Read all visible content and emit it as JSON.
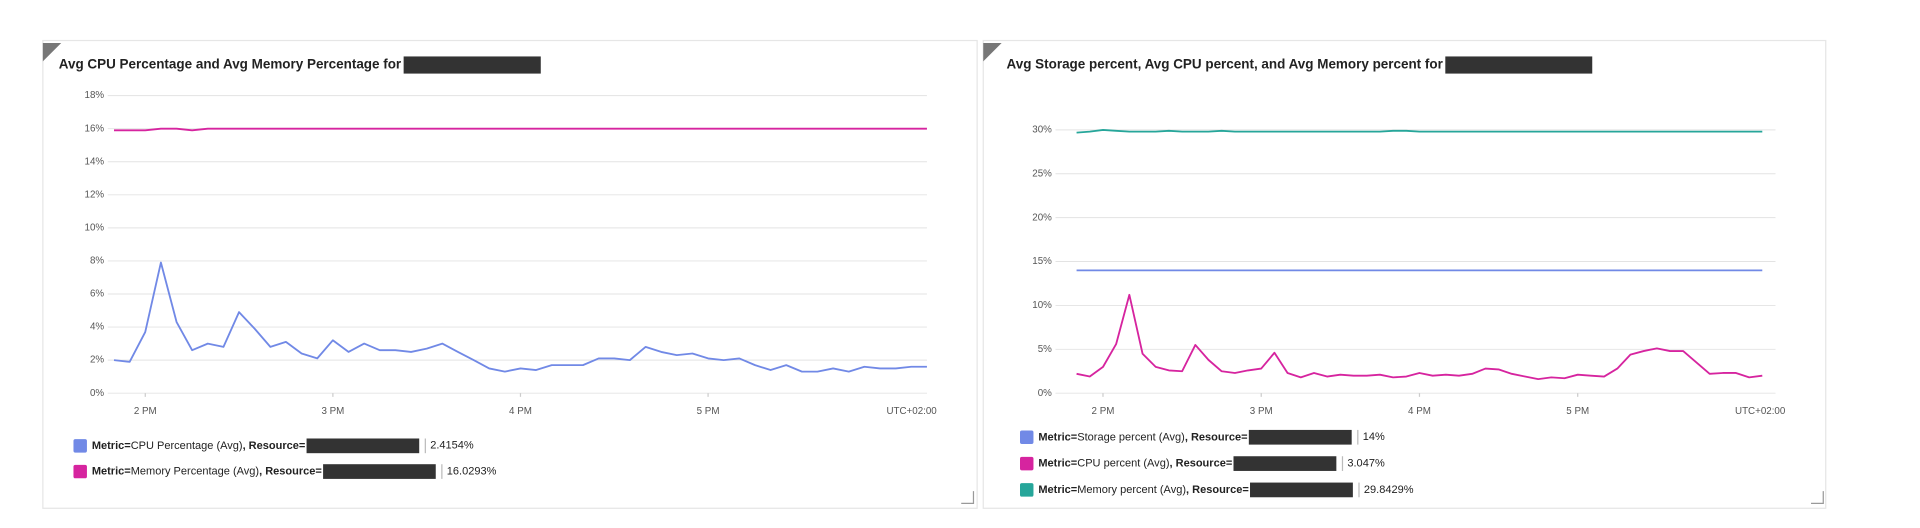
{
  "chart_data": [
    {
      "type": "line",
      "title": "Avg CPU Percentage and Avg Memory Percentage for",
      "legend_metric_key": "Metric=",
      "legend_resource_key": ", Resource=",
      "timezone": "UTC+02:00",
      "x": [
        830,
        835,
        840,
        845,
        850,
        855,
        860,
        865,
        870,
        875,
        880,
        885,
        890,
        895,
        900,
        905,
        910,
        915,
        920,
        925,
        930,
        935,
        940,
        945,
        950,
        955,
        960,
        965,
        970,
        975,
        980,
        985,
        990,
        995,
        1000,
        1005,
        1010,
        1015,
        1020,
        1025,
        1030,
        1035,
        1040,
        1045,
        1050,
        1055,
        1060,
        1065,
        1070,
        1075,
        1080,
        1085,
        1090
      ],
      "xlim": [
        828,
        1090
      ],
      "xticks": [
        {
          "value": 840,
          "label": "2 PM"
        },
        {
          "value": 900,
          "label": "3 PM"
        },
        {
          "value": 960,
          "label": "4 PM"
        },
        {
          "value": 1020,
          "label": "5 PM"
        }
      ],
      "ylim": [
        0,
        18
      ],
      "yticks": [
        {
          "value": 0,
          "label": "0%"
        },
        {
          "value": 2,
          "label": "2%"
        },
        {
          "value": 4,
          "label": "4%"
        },
        {
          "value": 6,
          "label": "6%"
        },
        {
          "value": 8,
          "label": "8%"
        },
        {
          "value": 10,
          "label": "10%"
        },
        {
          "value": 12,
          "label": "12%"
        },
        {
          "value": 14,
          "label": "14%"
        },
        {
          "value": 16,
          "label": "16%"
        },
        {
          "value": 18,
          "label": "18%"
        }
      ],
      "grid": true,
      "series": [
        {
          "name": "CPU Percentage (Avg)",
          "color": "#7189e6",
          "summary": 2.4154,
          "summary_label": "2.4154%",
          "values": [
            2.0,
            1.9,
            3.7,
            7.9,
            4.3,
            2.6,
            3.0,
            2.8,
            4.9,
            3.9,
            2.8,
            3.1,
            2.4,
            2.1,
            3.2,
            2.5,
            3.0,
            2.6,
            2.6,
            2.5,
            2.7,
            3.0,
            2.5,
            2.0,
            1.5,
            1.3,
            1.5,
            1.4,
            1.7,
            1.7,
            1.7,
            2.1,
            2.1,
            2.0,
            2.8,
            2.5,
            2.3,
            2.4,
            2.1,
            2.0,
            2.1,
            1.7,
            1.4,
            1.7,
            1.3,
            1.3,
            1.5,
            1.3,
            1.6,
            1.5,
            1.5,
            1.6,
            1.6
          ]
        },
        {
          "name": "Memory Percentage (Avg)",
          "color": "#d6249f",
          "summary": 16.0293,
          "summary_label": "16.0293%",
          "values": [
            15.9,
            15.9,
            15.9,
            16,
            16,
            15.9,
            16,
            16,
            16,
            16,
            16,
            16,
            16,
            16,
            16,
            16,
            16,
            16,
            16,
            16,
            16,
            16,
            16,
            16,
            16,
            16,
            16,
            16,
            16,
            16,
            16,
            16,
            16,
            16,
            16,
            16,
            16,
            16,
            16,
            16,
            16,
            16,
            16,
            16,
            16,
            16,
            16,
            16,
            16,
            16,
            16,
            16,
            16
          ]
        }
      ]
    },
    {
      "type": "line",
      "title": "Avg Storage percent, Avg CPU percent, and Avg Memory percent for",
      "legend_metric_key": "Metric=",
      "legend_resource_key": ", Resource=",
      "timezone": "UTC+02:00",
      "x": [
        830,
        835,
        840,
        845,
        850,
        855,
        860,
        865,
        870,
        875,
        880,
        885,
        890,
        895,
        900,
        905,
        910,
        915,
        920,
        925,
        930,
        935,
        940,
        945,
        950,
        955,
        960,
        965,
        970,
        975,
        980,
        985,
        990,
        995,
        1000,
        1005,
        1010,
        1015,
        1020,
        1025,
        1030,
        1035,
        1040,
        1045,
        1050,
        1055,
        1060,
        1065,
        1070,
        1075,
        1080,
        1085,
        1090
      ],
      "xlim": [
        822,
        1095
      ],
      "xticks": [
        {
          "value": 840,
          "label": "2 PM"
        },
        {
          "value": 900,
          "label": "3 PM"
        },
        {
          "value": 960,
          "label": "4 PM"
        },
        {
          "value": 1020,
          "label": "5 PM"
        }
      ],
      "ylim": [
        0,
        30
      ],
      "yticks": [
        {
          "value": 0,
          "label": "0%"
        },
        {
          "value": 5,
          "label": "5%"
        },
        {
          "value": 10,
          "label": "10%"
        },
        {
          "value": 15,
          "label": "15%"
        },
        {
          "value": 20,
          "label": "20%"
        },
        {
          "value": 25,
          "label": "25%"
        },
        {
          "value": 30,
          "label": "30%"
        }
      ],
      "grid": true,
      "series": [
        {
          "name": "Storage percent (Avg)",
          "color": "#7189e6",
          "summary": 14,
          "summary_label": "14%",
          "values": [
            14,
            14,
            14,
            14,
            14,
            14,
            14,
            14,
            14,
            14,
            14,
            14,
            14,
            14,
            14,
            14,
            14,
            14,
            14,
            14,
            14,
            14,
            14,
            14,
            14,
            14,
            14,
            14,
            14,
            14,
            14,
            14,
            14,
            14,
            14,
            14,
            14,
            14,
            14,
            14,
            14,
            14,
            14,
            14,
            14,
            14,
            14,
            14,
            14,
            14,
            14,
            14,
            14
          ]
        },
        {
          "name": "CPU percent (Avg)",
          "color": "#d6249f",
          "summary": 3.047,
          "summary_label": "3.047%",
          "values": [
            2.2,
            1.9,
            3.0,
            5.6,
            11.2,
            4.5,
            3.0,
            2.6,
            2.5,
            5.5,
            3.8,
            2.5,
            2.3,
            2.6,
            2.8,
            4.6,
            2.3,
            1.8,
            2.3,
            1.9,
            2.1,
            2.0,
            2.0,
            2.1,
            1.8,
            1.9,
            2.3,
            2.0,
            2.1,
            2.0,
            2.2,
            2.8,
            2.7,
            2.2,
            1.9,
            1.6,
            1.8,
            1.7,
            2.1,
            2.0,
            1.9,
            2.8,
            4.4,
            4.8,
            5.1,
            4.8,
            4.8,
            3.5,
            2.2,
            2.3,
            2.3,
            1.8,
            2.0
          ]
        },
        {
          "name": "Memory percent (Avg)",
          "color": "#26a69a",
          "summary": 29.8429,
          "summary_label": "29.8429%",
          "values": [
            29.7,
            29.8,
            30,
            29.9,
            29.8,
            29.8,
            29.8,
            29.9,
            29.8,
            29.8,
            29.8,
            29.9,
            29.8,
            29.8,
            29.8,
            29.8,
            29.8,
            29.8,
            29.8,
            29.8,
            29.8,
            29.8,
            29.8,
            29.8,
            29.9,
            29.9,
            29.8,
            29.8,
            29.8,
            29.8,
            29.8,
            29.8,
            29.8,
            29.8,
            29.8,
            29.8,
            29.8,
            29.8,
            29.8,
            29.8,
            29.8,
            29.8,
            29.8,
            29.8,
            29.8,
            29.8,
            29.8,
            29.8,
            29.8,
            29.8,
            29.8,
            29.8,
            29.8
          ]
        }
      ]
    }
  ]
}
